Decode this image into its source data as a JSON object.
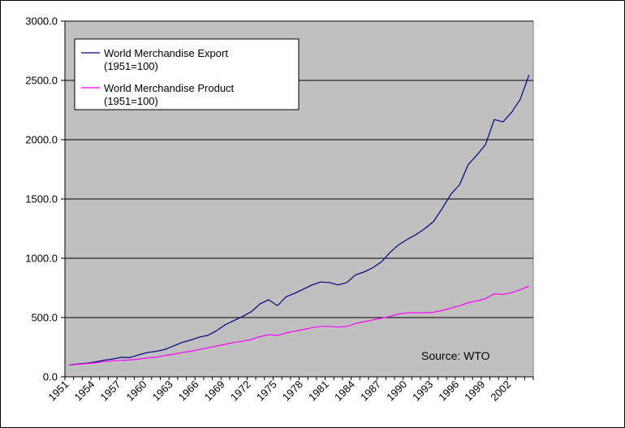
{
  "chart_data": {
    "type": "line",
    "title": "",
    "xlabel": "",
    "ylabel": "",
    "x": [
      1951,
      1952,
      1953,
      1954,
      1955,
      1956,
      1957,
      1958,
      1959,
      1960,
      1961,
      1962,
      1963,
      1964,
      1965,
      1966,
      1967,
      1968,
      1969,
      1970,
      1971,
      1972,
      1973,
      1974,
      1975,
      1976,
      1977,
      1978,
      1979,
      1980,
      1981,
      1982,
      1983,
      1984,
      1985,
      1986,
      1987,
      1988,
      1989,
      1990,
      1991,
      1992,
      1993,
      1994,
      1995,
      1996,
      1997,
      1998,
      1999,
      2000,
      2001,
      2002,
      2003,
      2004
    ],
    "x_tick_labels": [
      "1951",
      "1954",
      "1957",
      "1960",
      "1963",
      "1966",
      "1969",
      "1972",
      "1975",
      "1978",
      "1981",
      "1984",
      "1987",
      "1990",
      "1993",
      "1996",
      "1999",
      "2002"
    ],
    "y_tick_labels": [
      "0.0",
      "500.0",
      "1000.0",
      "1500.0",
      "2000.0",
      "2500.0",
      "3000.0"
    ],
    "ylim": [
      0,
      3000
    ],
    "grid": "horizontal",
    "plot_background": "#c0c0c0",
    "legend_position": "top-left",
    "annotation": "Source: WTO",
    "series": [
      {
        "name": "World Merchandise Export (1951=100)",
        "name_lines": [
          "World Merchandise Export",
          "(1951=100)"
        ],
        "color": "#000080",
        "values": [
          100,
          108,
          115,
          125,
          140,
          150,
          165,
          162,
          185,
          205,
          215,
          230,
          260,
          290,
          310,
          335,
          350,
          390,
          440,
          475,
          510,
          550,
          615,
          650,
          600,
          675,
          705,
          740,
          775,
          800,
          795,
          775,
          795,
          860,
          885,
          920,
          970,
          1050,
          1115,
          1160,
          1200,
          1250,
          1310,
          1420,
          1540,
          1620,
          1790,
          1870,
          1960,
          2170,
          2150,
          2230,
          2340,
          2545
        ]
      },
      {
        "name": "World Merchandise Product (1951=100)",
        "name_lines": [
          "World Merchandise Product",
          "(1951=100)"
        ],
        "color": "#ff00ff",
        "values": [
          100,
          105,
          112,
          118,
          128,
          135,
          140,
          142,
          150,
          160,
          165,
          180,
          190,
          205,
          215,
          230,
          245,
          260,
          275,
          290,
          300,
          315,
          340,
          355,
          350,
          370,
          385,
          400,
          415,
          425,
          425,
          420,
          425,
          450,
          465,
          480,
          495,
          510,
          530,
          540,
          540,
          540,
          545,
          560,
          580,
          600,
          625,
          640,
          660,
          700,
          695,
          710,
          735,
          765
        ]
      }
    ]
  }
}
